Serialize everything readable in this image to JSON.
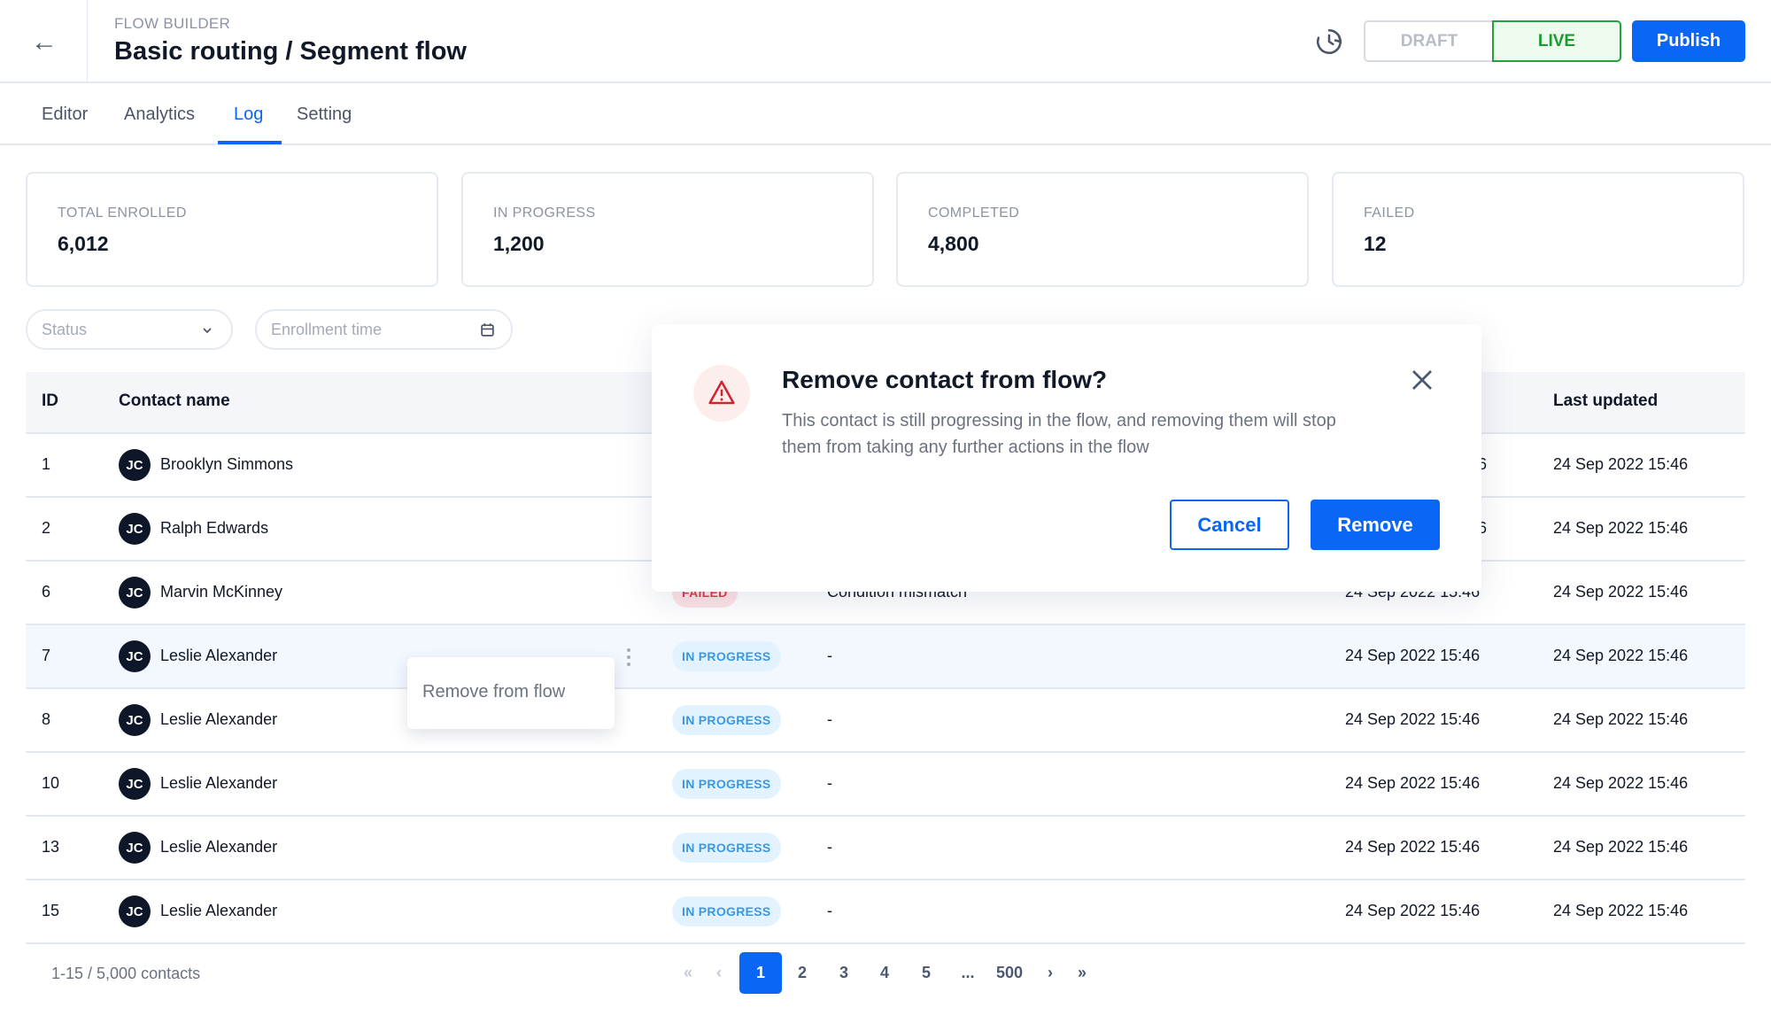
{
  "header": {
    "eyebrow": "FLOW BUILDER",
    "title": "Basic routing / Segment flow",
    "draft_label": "DRAFT",
    "live_label": "LIVE",
    "publish_label": "Publish",
    "icons": {
      "back": "arrow-left-icon",
      "history": "history-icon"
    }
  },
  "tabs": [
    {
      "label": "Editor"
    },
    {
      "label": "Analytics"
    },
    {
      "label": "Log",
      "active": true
    },
    {
      "label": "Setting"
    }
  ],
  "stats": [
    {
      "label": "TOTAL ENROLLED",
      "value": "6,012"
    },
    {
      "label": "IN PROGRESS",
      "value": "1,200"
    },
    {
      "label": "COMPLETED",
      "value": "4,800"
    },
    {
      "label": "FAILED",
      "value": "12"
    }
  ],
  "filters": {
    "status_placeholder": "Status",
    "enrollment_placeholder": "Enrollment time"
  },
  "table": {
    "columns": {
      "id": "ID",
      "contact": "Contact name",
      "last_updated": "Last updated"
    },
    "rows": [
      {
        "id": "1",
        "initials": "JC",
        "name": "Brooklyn Simmons",
        "status": "",
        "reason": "",
        "enrolled": "6",
        "updated": "24 Sep 2022 15:46"
      },
      {
        "id": "2",
        "initials": "JC",
        "name": "Ralph Edwards",
        "status": "",
        "reason": "",
        "enrolled": "6",
        "updated": "24 Sep 2022 15:46"
      },
      {
        "id": "6",
        "initials": "JC",
        "name": "Marvin McKinney",
        "status": "FAILED",
        "reason": "Condition mismatch",
        "enrolled": "24 Sep 2022 15:46",
        "updated": "24 Sep 2022 15:46"
      },
      {
        "id": "7",
        "initials": "JC",
        "name": "Leslie Alexander",
        "status": "IN PROGRESS",
        "reason": "-",
        "enrolled": "24 Sep 2022 15:46",
        "updated": "24 Sep 2022 15:46"
      },
      {
        "id": "8",
        "initials": "JC",
        "name": "Leslie Alexander",
        "status": "IN PROGRESS",
        "reason": "-",
        "enrolled": "24 Sep 2022 15:46",
        "updated": "24 Sep 2022 15:46"
      },
      {
        "id": "10",
        "initials": "JC",
        "name": "Leslie Alexander",
        "status": "IN PROGRESS",
        "reason": "-",
        "enrolled": "24 Sep 2022 15:46",
        "updated": "24 Sep 2022 15:46"
      },
      {
        "id": "13",
        "initials": "JC",
        "name": "Leslie Alexander",
        "status": "IN PROGRESS",
        "reason": "-",
        "enrolled": "24 Sep 2022 15:46",
        "updated": "24 Sep 2022 15:46"
      },
      {
        "id": "15",
        "initials": "JC",
        "name": "Leslie Alexander",
        "status": "IN PROGRESS",
        "reason": "-",
        "enrolled": "24 Sep 2022 15:46",
        "updated": "24 Sep 2022 15:46"
      }
    ]
  },
  "context_menu": {
    "item": "Remove from flow"
  },
  "modal": {
    "title": "Remove contact from flow?",
    "body": "This contact is still progressing in the flow, and removing them will stop them from taking any further actions in the flow",
    "cancel": "Cancel",
    "remove": "Remove",
    "icon": "warning-triangle-icon"
  },
  "footer": {
    "summary": "1-15 / 5,000 contacts",
    "pages": [
      "1",
      "2",
      "3",
      "4",
      "5",
      "...",
      "500"
    ],
    "current_page": "1"
  },
  "colors": {
    "accent": "#0a66f5",
    "live": "#1a9a31",
    "failed": "#e03a4a",
    "in_progress": "#3d98e0"
  }
}
